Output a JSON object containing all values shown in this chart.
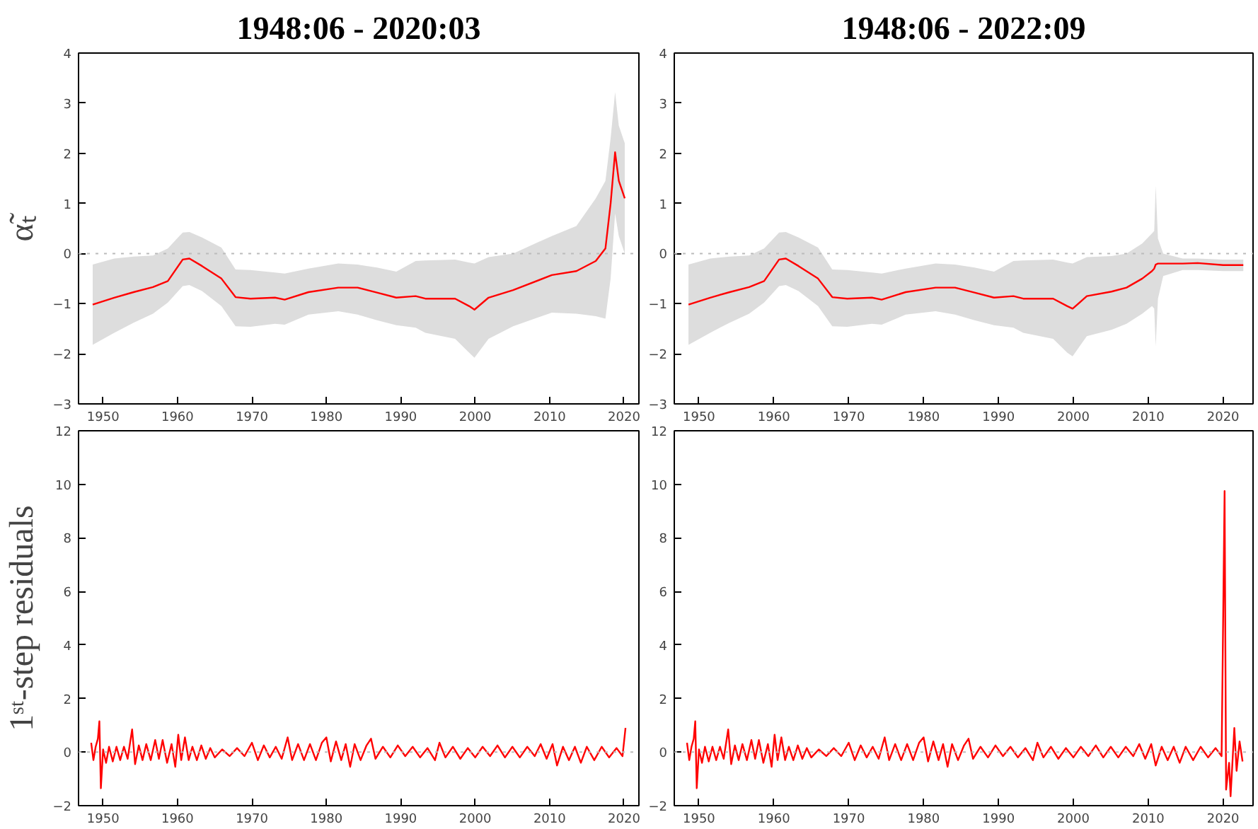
{
  "chart_data": [
    {
      "type": "line",
      "title": "1948:06 - 2020:03",
      "ylabel": "α̃ₜ",
      "xlim": [
        1946.7,
        2022
      ],
      "xticks": [
        1950,
        1960,
        1970,
        1980,
        1990,
        2000,
        2010,
        2020
      ],
      "ylim": [
        -3,
        4
      ],
      "yticks": [
        -3,
        -2,
        -1,
        0,
        1,
        2,
        3,
        4
      ],
      "grid": false,
      "ref_lines": [
        {
          "axis": "y",
          "value": 0,
          "color": "#bbbbbb",
          "line_style": "dotted"
        }
      ],
      "x": [
        1948.6,
        1951.5,
        1954.1,
        1956.7,
        1958.7,
        1960.7,
        1961.6,
        1963.3,
        1965.9,
        1967.8,
        1969.8,
        1973.1,
        1974.4,
        1977.6,
        1981.6,
        1984.2,
        1986.8,
        1989.4,
        1992.0,
        1993.3,
        1997.3,
        1999.2,
        1999.9,
        2001.8,
        2005.1,
        2010.3,
        2013.6,
        2016.2,
        2017.5,
        2018.2,
        2018.8,
        2019.3,
        2020.1
      ],
      "series": [
        {
          "color": "#ff0000",
          "values": [
            -1.02,
            -0.88,
            -0.77,
            -0.67,
            -0.55,
            -0.12,
            -0.1,
            -0.25,
            -0.5,
            -0.87,
            -0.9,
            -0.88,
            -0.92,
            -0.77,
            -0.68,
            -0.68,
            -0.78,
            -0.88,
            -0.85,
            -0.9,
            -0.9,
            -1.05,
            -1.12,
            -0.88,
            -0.73,
            -0.43,
            -0.35,
            -0.15,
            0.1,
            1.0,
            2.02,
            1.45,
            1.1
          ],
          "lower": [
            -1.82,
            -1.58,
            -1.38,
            -1.2,
            -0.98,
            -0.65,
            -0.63,
            -0.75,
            -1.05,
            -1.45,
            -1.46,
            -1.4,
            -1.42,
            -1.22,
            -1.15,
            -1.22,
            -1.33,
            -1.43,
            -1.48,
            -1.58,
            -1.7,
            -1.98,
            -2.08,
            -1.7,
            -1.45,
            -1.18,
            -1.2,
            -1.25,
            -1.3,
            -0.5,
            0.8,
            0.35,
            0.0
          ],
          "upper": [
            -0.22,
            -0.1,
            -0.06,
            -0.04,
            0.1,
            0.42,
            0.43,
            0.32,
            0.12,
            -0.32,
            -0.33,
            -0.38,
            -0.4,
            -0.3,
            -0.2,
            -0.22,
            -0.28,
            -0.36,
            -0.15,
            -0.14,
            -0.12,
            -0.18,
            -0.2,
            -0.07,
            0.0,
            0.35,
            0.55,
            1.1,
            1.45,
            2.3,
            3.22,
            2.55,
            2.2
          ]
        }
      ]
    },
    {
      "type": "line",
      "title": "1948:06 - 2022:09",
      "xlim": [
        1946.7,
        2024
      ],
      "xticks": [
        1950,
        1960,
        1970,
        1980,
        1990,
        2000,
        2010,
        2020
      ],
      "ylim": [
        -3,
        4
      ],
      "yticks": [
        -3,
        -2,
        -1,
        0,
        1,
        2,
        3,
        4
      ],
      "grid": false,
      "ref_lines": [
        {
          "axis": "y",
          "value": 0,
          "color": "#bbbbbb",
          "line_style": "dotted"
        }
      ],
      "x": [
        1948.6,
        1951.5,
        1954.1,
        1956.7,
        1958.7,
        1960.7,
        1961.6,
        1963.3,
        1965.9,
        1967.8,
        1969.8,
        1973.1,
        1974.4,
        1977.6,
        1981.6,
        1984.2,
        1986.8,
        1989.4,
        1992.0,
        1993.3,
        1997.3,
        1999.2,
        1999.9,
        2001.8,
        2005.1,
        2007.1,
        2009.2,
        2010.5,
        2010.8,
        2011.0,
        2011.3,
        2012.0,
        2014.6,
        2016.6,
        2020.0,
        2022.7
      ],
      "series": [
        {
          "color": "#ff0000",
          "values": [
            -1.02,
            -0.88,
            -0.77,
            -0.67,
            -0.55,
            -0.12,
            -0.1,
            -0.25,
            -0.5,
            -0.87,
            -0.9,
            -0.88,
            -0.92,
            -0.77,
            -0.68,
            -0.68,
            -0.78,
            -0.88,
            -0.85,
            -0.9,
            -0.9,
            -1.05,
            -1.1,
            -0.85,
            -0.76,
            -0.68,
            -0.5,
            -0.35,
            -0.3,
            -0.22,
            -0.2,
            -0.2,
            -0.2,
            -0.19,
            -0.23,
            -0.23
          ],
          "lower": [
            -1.82,
            -1.58,
            -1.38,
            -1.2,
            -0.98,
            -0.65,
            -0.63,
            -0.75,
            -1.05,
            -1.45,
            -1.46,
            -1.4,
            -1.42,
            -1.22,
            -1.15,
            -1.22,
            -1.33,
            -1.43,
            -1.48,
            -1.58,
            -1.7,
            -1.98,
            -2.05,
            -1.65,
            -1.52,
            -1.4,
            -1.2,
            -1.05,
            -1.1,
            -1.85,
            -0.9,
            -0.45,
            -0.33,
            -0.33,
            -0.35,
            -0.35
          ],
          "upper": [
            -0.22,
            -0.1,
            -0.06,
            -0.04,
            0.1,
            0.42,
            0.43,
            0.32,
            0.12,
            -0.32,
            -0.33,
            -0.38,
            -0.4,
            -0.3,
            -0.2,
            -0.22,
            -0.28,
            -0.36,
            -0.15,
            -0.14,
            -0.12,
            -0.18,
            -0.2,
            -0.07,
            -0.05,
            0.0,
            0.2,
            0.4,
            0.45,
            1.35,
            0.3,
            0.0,
            -0.1,
            -0.1,
            -0.12,
            -0.12
          ]
        }
      ]
    },
    {
      "type": "line",
      "ylabel": "1ˢᵗ-step residuals",
      "xlim": [
        1946.7,
        2022
      ],
      "xticks": [
        1950,
        1960,
        1970,
        1980,
        1990,
        2000,
        2010,
        2020
      ],
      "ylim": [
        -2,
        12
      ],
      "yticks": [
        -2,
        0,
        2,
        4,
        6,
        8,
        10,
        12
      ],
      "grid": false,
      "ref_lines": [
        {
          "axis": "y",
          "value": 0,
          "color": "#bbbbbb",
          "line_style": "dotted"
        }
      ],
      "x": [
        1948.4,
        1948.7,
        1949.0,
        1949.3,
        1949.5,
        1949.7,
        1950.0,
        1950.4,
        1950.8,
        1951.3,
        1951.8,
        1952.3,
        1952.8,
        1953.3,
        1953.9,
        1954.3,
        1954.8,
        1955.3,
        1955.8,
        1956.4,
        1957.0,
        1957.5,
        1958.0,
        1958.6,
        1959.2,
        1959.7,
        1960.1,
        1960.5,
        1961.0,
        1961.5,
        1962.0,
        1962.6,
        1963.2,
        1963.8,
        1964.4,
        1965.0,
        1966.0,
        1967.0,
        1968.0,
        1969.0,
        1970.0,
        1970.8,
        1971.6,
        1972.4,
        1973.2,
        1974.0,
        1974.8,
        1975.4,
        1976.2,
        1977.0,
        1977.8,
        1978.6,
        1979.4,
        1980.0,
        1980.6,
        1981.3,
        1982.0,
        1982.6,
        1983.2,
        1983.8,
        1984.6,
        1985.4,
        1986.0,
        1986.6,
        1987.6,
        1988.6,
        1989.6,
        1990.6,
        1991.6,
        1992.6,
        1993.6,
        1994.6,
        1995.2,
        1996.0,
        1997.0,
        1998.0,
        1999.0,
        2000.0,
        2001.0,
        2002.0,
        2003.0,
        2004.0,
        2005.0,
        2006.0,
        2007.0,
        2008.0,
        2008.8,
        2009.6,
        2010.4,
        2011.0,
        2011.8,
        2012.6,
        2013.4,
        2014.2,
        2015.0,
        2016.0,
        2017.0,
        2018.0,
        2019.0,
        2019.8,
        2020.2
      ],
      "series": [
        {
          "color": "#ff0000",
          "values": [
            0.35,
            -0.3,
            0.2,
            0.5,
            1.15,
            -1.35,
            0.1,
            -0.4,
            0.2,
            -0.35,
            0.2,
            -0.3,
            0.2,
            -0.25,
            0.85,
            -0.45,
            0.25,
            -0.3,
            0.3,
            -0.3,
            0.45,
            -0.25,
            0.45,
            -0.4,
            0.3,
            -0.55,
            0.65,
            -0.3,
            0.55,
            -0.3,
            0.2,
            -0.3,
            0.25,
            -0.25,
            0.15,
            -0.2,
            0.1,
            -0.15,
            0.15,
            -0.15,
            0.35,
            -0.3,
            0.25,
            -0.2,
            0.2,
            -0.25,
            0.55,
            -0.3,
            0.3,
            -0.3,
            0.3,
            -0.3,
            0.35,
            0.55,
            -0.35,
            0.4,
            -0.3,
            0.3,
            -0.55,
            0.3,
            -0.3,
            0.25,
            0.5,
            -0.25,
            0.2,
            -0.2,
            0.25,
            -0.15,
            0.2,
            -0.2,
            0.15,
            -0.3,
            0.35,
            -0.2,
            0.2,
            -0.25,
            0.15,
            -0.2,
            0.2,
            -0.15,
            0.25,
            -0.2,
            0.2,
            -0.2,
            0.2,
            -0.15,
            0.3,
            -0.25,
            0.3,
            -0.5,
            0.2,
            -0.3,
            0.2,
            -0.4,
            0.2,
            -0.3,
            0.2,
            -0.2,
            0.15,
            -0.15,
            0.9
          ]
        }
      ]
    },
    {
      "type": "line",
      "xlim": [
        1946.7,
        2024
      ],
      "xticks": [
        1950,
        1960,
        1970,
        1980,
        1990,
        2000,
        2010,
        2020
      ],
      "ylim": [
        -2,
        12
      ],
      "yticks": [
        -2,
        0,
        2,
        4,
        6,
        8,
        10,
        12
      ],
      "grid": false,
      "ref_lines": [
        {
          "axis": "y",
          "value": 0,
          "color": "#bbbbbb",
          "line_style": "dotted"
        }
      ],
      "x": [
        1948.4,
        1948.7,
        1949.0,
        1949.3,
        1949.5,
        1949.7,
        1950.0,
        1950.4,
        1950.8,
        1951.3,
        1951.8,
        1952.3,
        1952.8,
        1953.3,
        1953.9,
        1954.3,
        1954.8,
        1955.3,
        1955.8,
        1956.4,
        1957.0,
        1957.5,
        1958.0,
        1958.6,
        1959.2,
        1959.7,
        1960.1,
        1960.5,
        1961.0,
        1961.5,
        1962.0,
        1962.6,
        1963.2,
        1963.8,
        1964.4,
        1965.0,
        1966.0,
        1967.0,
        1968.0,
        1969.0,
        1970.0,
        1970.8,
        1971.6,
        1972.4,
        1973.2,
        1974.0,
        1974.8,
        1975.4,
        1976.2,
        1977.0,
        1977.8,
        1978.6,
        1979.4,
        1980.0,
        1980.6,
        1981.3,
        1982.0,
        1982.6,
        1983.2,
        1983.8,
        1984.6,
        1985.4,
        1986.0,
        1986.6,
        1987.6,
        1988.6,
        1989.6,
        1990.6,
        1991.6,
        1992.6,
        1993.6,
        1994.6,
        1995.2,
        1996.0,
        1997.0,
        1998.0,
        1999.0,
        2000.0,
        2001.0,
        2002.0,
        2003.0,
        2004.0,
        2005.0,
        2006.0,
        2007.0,
        2008.0,
        2008.8,
        2009.6,
        2010.4,
        2011.0,
        2011.8,
        2012.6,
        2013.4,
        2014.2,
        2015.0,
        2016.0,
        2017.0,
        2018.0,
        2019.0,
        2019.8,
        2020.2,
        2020.4,
        2020.8,
        2021.0,
        2021.5,
        2021.8,
        2022.2,
        2022.6
      ],
      "series": [
        {
          "color": "#ff0000",
          "values": [
            0.35,
            -0.3,
            0.2,
            0.5,
            1.15,
            -1.35,
            0.1,
            -0.4,
            0.2,
            -0.35,
            0.2,
            -0.3,
            0.2,
            -0.25,
            0.85,
            -0.45,
            0.25,
            -0.3,
            0.3,
            -0.3,
            0.45,
            -0.25,
            0.45,
            -0.4,
            0.3,
            -0.55,
            0.65,
            -0.3,
            0.55,
            -0.3,
            0.2,
            -0.3,
            0.25,
            -0.25,
            0.15,
            -0.2,
            0.1,
            -0.15,
            0.15,
            -0.15,
            0.35,
            -0.3,
            0.25,
            -0.2,
            0.2,
            -0.25,
            0.55,
            -0.3,
            0.3,
            -0.3,
            0.3,
            -0.3,
            0.35,
            0.55,
            -0.35,
            0.4,
            -0.3,
            0.3,
            -0.55,
            0.3,
            -0.3,
            0.25,
            0.5,
            -0.25,
            0.2,
            -0.2,
            0.25,
            -0.15,
            0.2,
            -0.2,
            0.15,
            -0.3,
            0.35,
            -0.2,
            0.2,
            -0.25,
            0.15,
            -0.2,
            0.2,
            -0.15,
            0.25,
            -0.2,
            0.2,
            -0.2,
            0.2,
            -0.15,
            0.3,
            -0.25,
            0.3,
            -0.5,
            0.2,
            -0.3,
            0.2,
            -0.4,
            0.2,
            -0.3,
            0.2,
            -0.2,
            0.15,
            -0.15,
            9.75,
            -1.4,
            -0.4,
            -1.65,
            0.9,
            -0.7,
            0.4,
            -0.35
          ]
        }
      ]
    }
  ]
}
